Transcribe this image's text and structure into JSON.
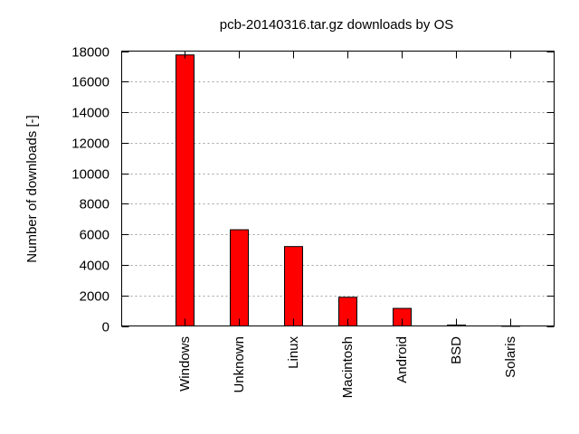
{
  "chart_data": {
    "type": "bar",
    "title": "pcb-20140316.tar.gz downloads by OS",
    "xlabel": "",
    "ylabel": "Number of downloads [-]",
    "categories": [
      "Windows",
      "Unknown",
      "Linux",
      "Macintosh",
      "Android",
      "BSD",
      "Solaris"
    ],
    "values": [
      17750,
      6300,
      5200,
      1880,
      1150,
      60,
      5
    ],
    "ylim": [
      0,
      18000
    ],
    "yticks": [
      0,
      2000,
      4000,
      6000,
      8000,
      10000,
      12000,
      14000,
      16000,
      18000
    ],
    "bar_color": "#ff0000",
    "grid": true,
    "legend": "none"
  }
}
